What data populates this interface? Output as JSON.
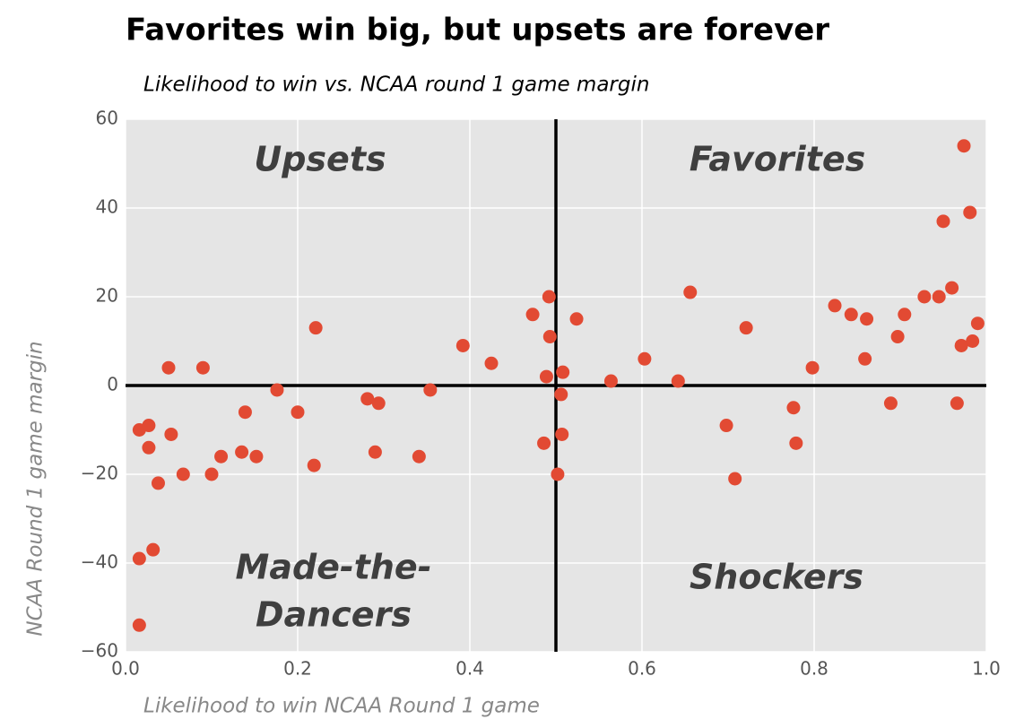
{
  "chart_data": {
    "type": "scatter",
    "title": "Favorites win big, but upsets are forever",
    "subtitle": "Likelihood to win vs. NCAA round 1 game margin",
    "x_label": "Likelihood to win NCAA Round 1 game",
    "y_label": "NCAA Round 1 game margin",
    "annotations": [
      {
        "lines": [
          "Upsets"
        ]
      },
      {
        "lines": [
          "Favorites"
        ]
      },
      {
        "lines": [
          "Made-the-",
          "Dancers"
        ]
      },
      {
        "lines": [
          "Shockers"
        ]
      }
    ],
    "reference_lines": {
      "x": 0.5,
      "y": 0
    },
    "grid": true,
    "series": [
      {
        "color": "#e24a33",
        "x": [
          0.016,
          0.027,
          0.027,
          0.038,
          0.016,
          0.032,
          0.016,
          0.05,
          0.053,
          0.067,
          0.09,
          0.1,
          0.111,
          0.135,
          0.139,
          0.152,
          0.176,
          0.2,
          0.219,
          0.221,
          0.281,
          0.294,
          0.29,
          0.341,
          0.354,
          0.392,
          0.425,
          0.473,
          0.492,
          0.493,
          0.489,
          0.486,
          0.508,
          0.506,
          0.507,
          0.502,
          0.524,
          0.564,
          0.603,
          0.642,
          0.656,
          0.698,
          0.708,
          0.721,
          0.776,
          0.779,
          0.798,
          0.824,
          0.843,
          0.861,
          0.859,
          0.889,
          0.897,
          0.905,
          0.928,
          0.945,
          0.95,
          0.96,
          0.966,
          0.971,
          0.974,
          0.981,
          0.984,
          0.99
        ],
        "values": [
          -10,
          -9,
          -14,
          -22,
          -39,
          -37,
          -54,
          4,
          -11,
          -20,
          4,
          -20,
          -16,
          -15,
          -6,
          -16,
          -1,
          -6,
          -18,
          13,
          -3,
          -4,
          -15,
          -16,
          -1,
          9,
          5,
          16,
          20,
          11,
          2,
          -13,
          3,
          -2,
          -11,
          -20,
          15,
          1,
          6,
          1,
          21,
          -9,
          -21,
          13,
          -5,
          -13,
          4,
          18,
          16,
          15,
          6,
          -4,
          11,
          16,
          20,
          20,
          37,
          22,
          -4,
          9,
          54,
          39,
          10,
          14
        ]
      }
    ],
    "xlim": [
      0,
      1
    ],
    "xticks": [
      {
        "value": 0,
        "label": "0.0"
      },
      0.2,
      0.4,
      0.6,
      0.8,
      {
        "value": 1,
        "label": "1.0"
      }
    ],
    "ylim": [
      -60,
      60
    ],
    "yticks": [
      {
        "value": -60,
        "label": "−60"
      },
      {
        "value": -40,
        "label": "−40"
      },
      {
        "value": -20,
        "label": "−20"
      },
      0,
      20,
      40,
      60
    ]
  }
}
